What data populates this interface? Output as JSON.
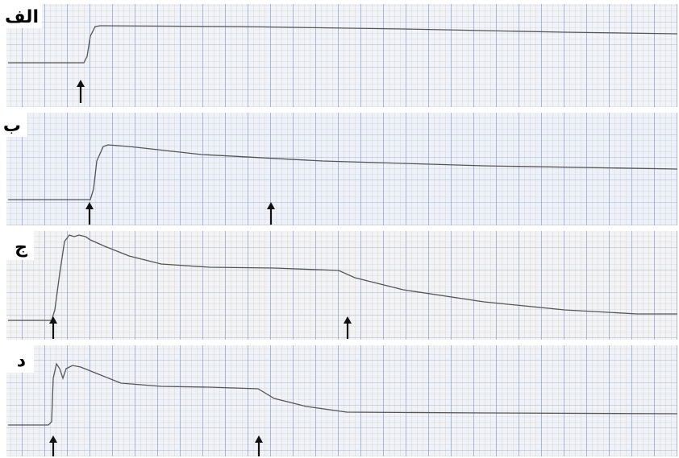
{
  "panels": [
    {
      "label": "الف"
    },
    {
      "label": "ب"
    },
    {
      "label": "ج"
    },
    {
      "label": "د"
    }
  ]
}
